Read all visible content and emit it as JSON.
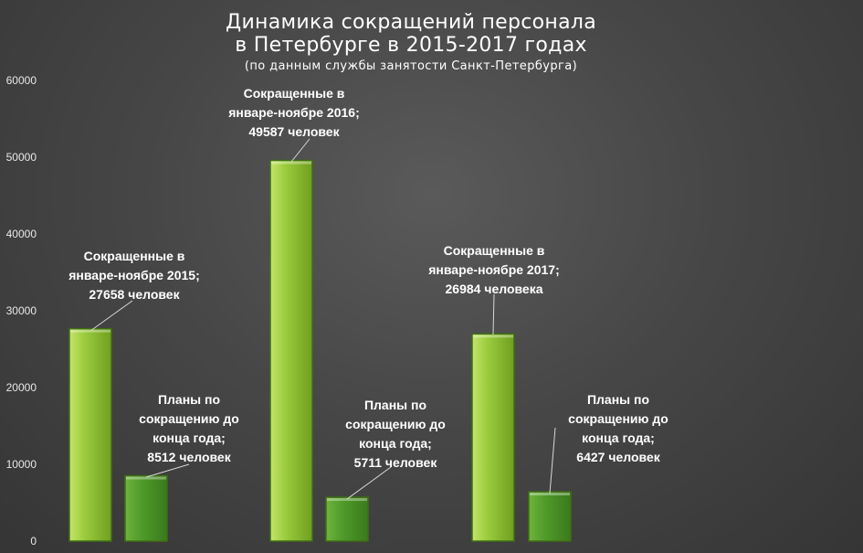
{
  "title": {
    "line1": "Динамика сокращений персонала",
    "line2": "в Петербурге в 2015-2017 годах",
    "subtitle": "(по данным службы занятости Санкт-Петербурга)"
  },
  "colors": {
    "bar_light": "#8fc23a",
    "bar_dark": "#4f9a2a",
    "bar_edge": "#3f6f15",
    "text": "#ffffff"
  },
  "chart_data": {
    "type": "bar",
    "ylim": [
      0,
      60000
    ],
    "yticks": [
      "0",
      "10000",
      "20000",
      "30000",
      "40000",
      "50000",
      "60000"
    ],
    "grid": false,
    "bars": [
      {
        "value": 27658,
        "style": "light",
        "label": [
          "Сокращенные в",
          "январе-ноябре 2015;",
          "27658 человек"
        ]
      },
      {
        "value": 8512,
        "style": "dark",
        "label": [
          "Планы по",
          "сокращению до",
          "конца года;",
          "8512 человек"
        ]
      },
      {
        "value": 49587,
        "style": "light",
        "label": [
          "Сокращенные в",
          "январе-ноябре 2016;",
          "49587 человек"
        ]
      },
      {
        "value": 5711,
        "style": "dark",
        "label": [
          "Планы по",
          "сокращению до",
          "конца года;",
          "5711 человек"
        ]
      },
      {
        "value": 26984,
        "style": "light",
        "label": [
          "Сокращенные в",
          "январе-ноябре 2017;",
          "26984 человека"
        ]
      },
      {
        "value": 6427,
        "style": "dark",
        "label": [
          "Планы по",
          "сокращению до",
          "конца года;",
          "6427 человек"
        ]
      }
    ]
  }
}
